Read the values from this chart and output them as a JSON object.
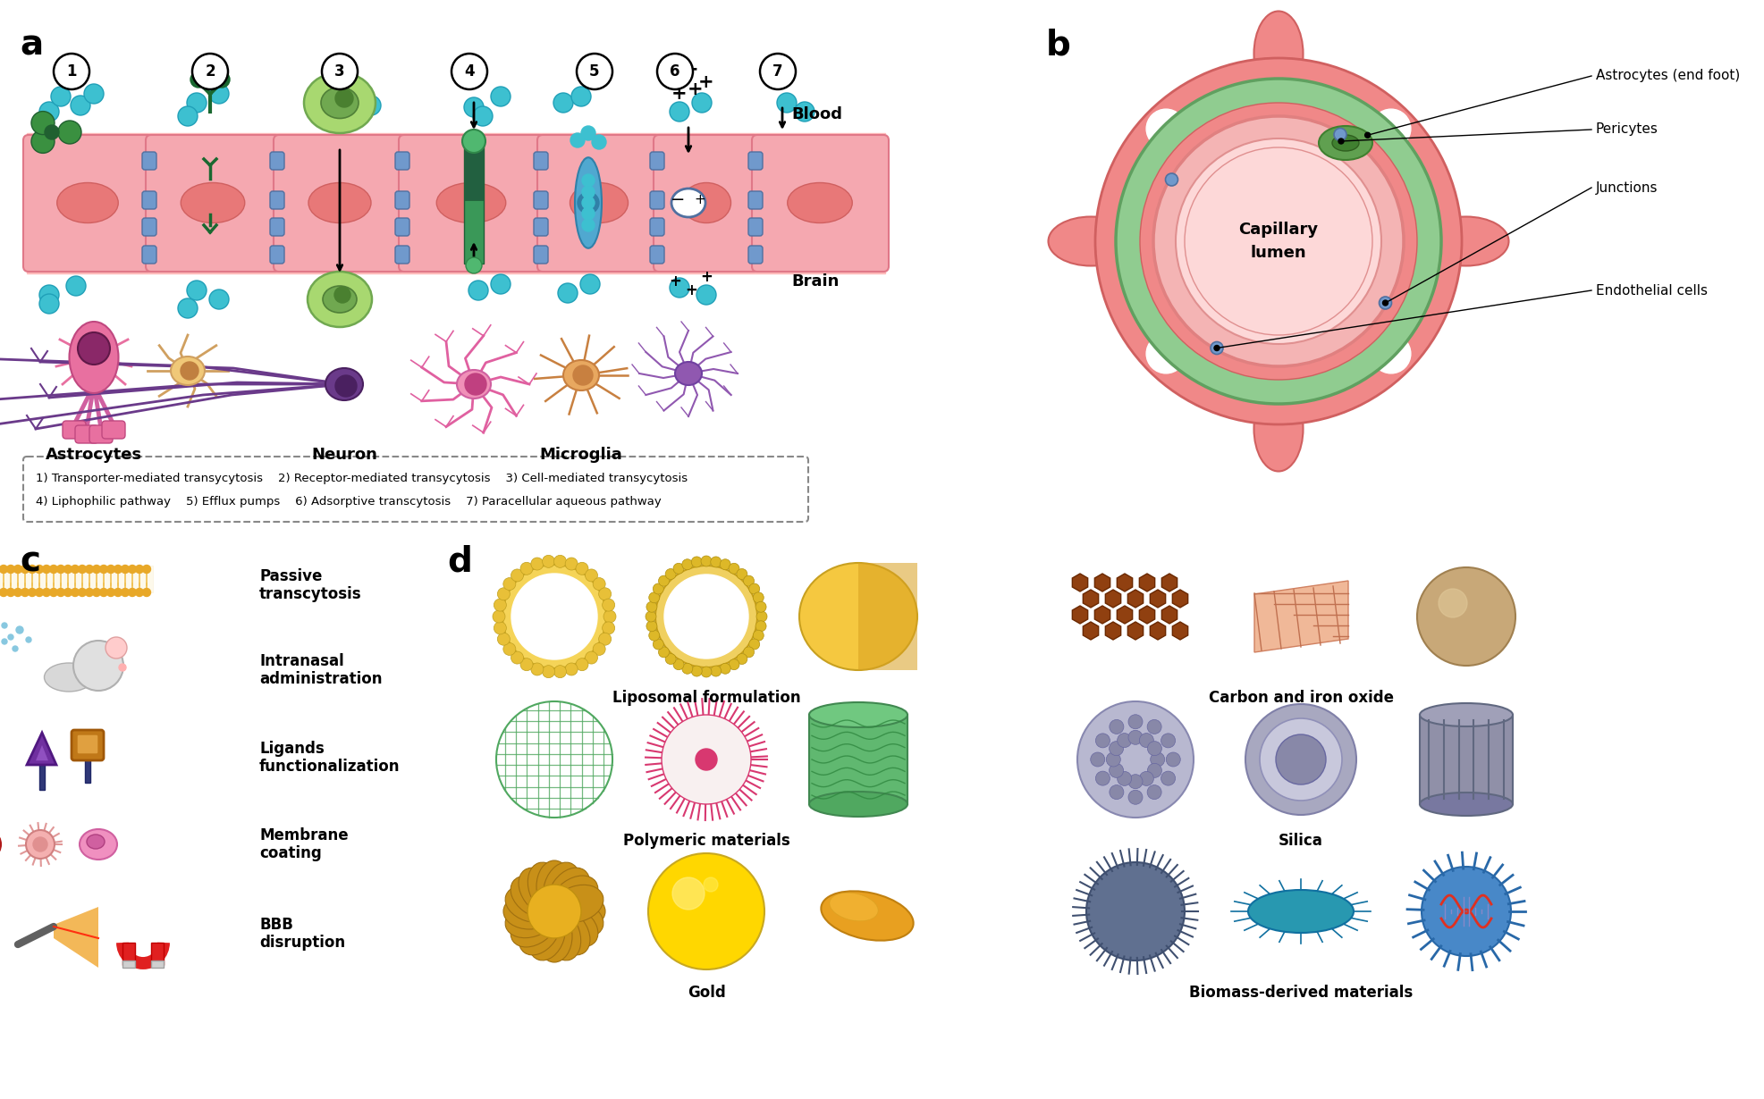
{
  "panel_a_label": "a",
  "panel_b_label": "b",
  "panel_c_label": "c",
  "panel_d_label": "d",
  "blood_label": "Blood",
  "brain_label": "Brain",
  "cell_labels": [
    "Astrocytes",
    "Neuron",
    "Microglia"
  ],
  "legend_text_1": "1) Transporter-mediated transycytosis    2) Receptor-mediated transycytosis    3) Cell-mediated transycytosis",
  "legend_text_2": "4) Liphophilic pathway    5) Efflux pumps    6) Adsorptive transcytosis    7) Paracellular aqueous pathway",
  "panel_b_labels": [
    "Astrocytes (end foot)",
    "Pericytes",
    "Junctions",
    "Capillary\nlumen",
    "Endothelial cells"
  ],
  "panel_c_labels": [
    "Passive\ntranscytosis",
    "Intranasal\nadministration",
    "Ligands\nfunctionalization",
    "Membrane\ncoating",
    "BBB\ndisruption"
  ],
  "panel_d_labels": [
    "Liposomal formulation",
    "Polymeric materials",
    "Gold",
    "Carbon and iron oxide",
    "Silica",
    "Biomass-derived materials"
  ],
  "colors": {
    "bg": "#ffffff",
    "cell_pink": "#F5A8B0",
    "cell_pink_dark": "#E8808A",
    "cell_nucleus": "#E87080",
    "junction_blue": "#7099CC",
    "basement_pink": "#FFB0B8",
    "teal": "#3DC0D0",
    "green_cell": "#A0D878",
    "green_cell_dark": "#70B050",
    "green_cell_nucleus": "#70A858",
    "astrocyte_pink": "#E870A0",
    "astrocyte_body": "#F090B8",
    "astrocyte_nucleus": "#A03880",
    "oligodendro_tan": "#F0C878",
    "neuron_purple": "#6A3A8A",
    "neuron_light": "#D09AE0",
    "microglia_pink": "#E870A0",
    "microglia_orange": "#E8A860",
    "microglia_orange_dark": "#C88040",
    "microglia_purple": "#9058B0",
    "outer_red": "#F08888",
    "pericyte_green_dark": "#60A060",
    "pericyte_green_light": "#90D090",
    "endothelial_pink": "#F4B8B8",
    "lumen_pink": "#FDD8D8",
    "gold1": "#C89820",
    "gold2": "#FFD700",
    "gold3": "#E8A820",
    "liposome_y": "#F0D050",
    "polymer_g": "#50A860",
    "silica_gray": "#9898B8",
    "carbon_br": "#904010",
    "teal_bact": "#2898B0",
    "virus_blue": "#4080C8"
  }
}
